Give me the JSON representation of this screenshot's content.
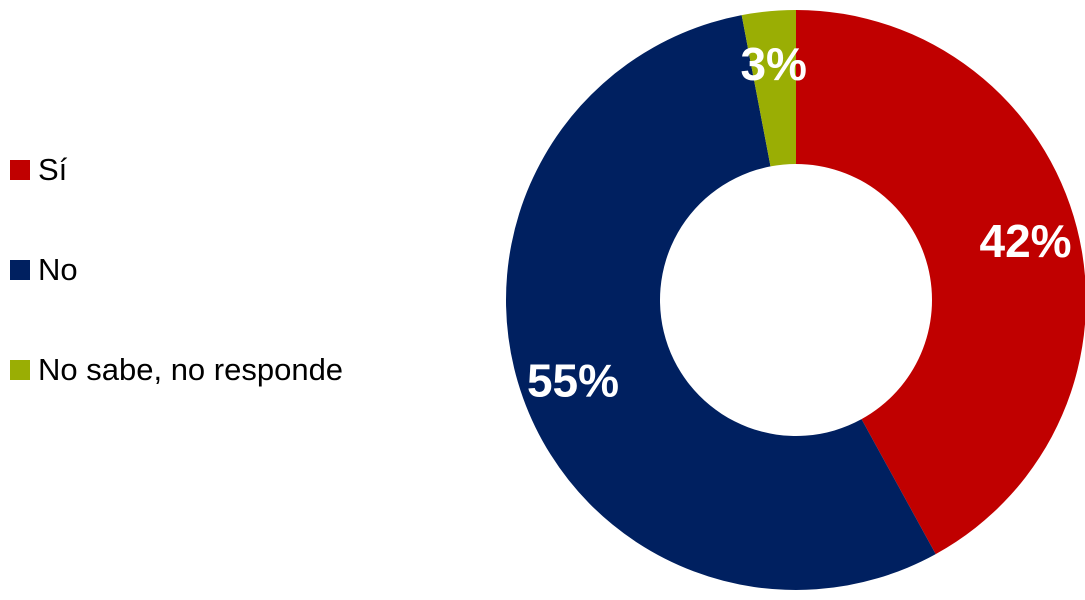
{
  "chart_data": {
    "type": "pie",
    "donut": true,
    "legend_position": "left",
    "slices": [
      {
        "label": "Sí",
        "value": 42,
        "display": "42%",
        "color": "#C00000"
      },
      {
        "label": "No",
        "value": 55,
        "display": "55%",
        "color": "#002060"
      },
      {
        "label": "No sabe, no responde",
        "value": 3,
        "display": "3%",
        "color": "#9AAE04"
      }
    ]
  }
}
